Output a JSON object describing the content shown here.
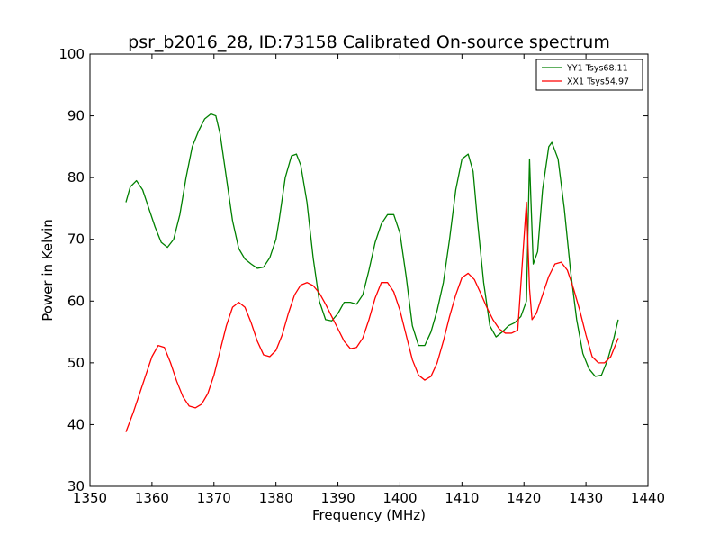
{
  "chart_data": {
    "type": "line",
    "title": "psr_b2016_28, ID:73158 Calibrated On-source spectrum",
    "xlabel": "Frequency (MHz)",
    "ylabel": "Power in Kelvin",
    "xlim": [
      1350,
      1440
    ],
    "ylim": [
      30,
      100
    ],
    "xticks": [
      1350,
      1360,
      1370,
      1380,
      1390,
      1400,
      1410,
      1420,
      1430,
      1440
    ],
    "yticks": [
      30,
      40,
      50,
      60,
      70,
      80,
      90,
      100
    ],
    "grid": false,
    "legend_position": "top-right",
    "series": [
      {
        "name": "YY1 Tsys68.11",
        "color": "#008000",
        "x": [
          1355.8,
          1356.5,
          1357.5,
          1358.5,
          1359.5,
          1360.5,
          1361.5,
          1362.5,
          1363.5,
          1364.5,
          1365.5,
          1366.5,
          1367.5,
          1368.5,
          1369.5,
          1370.3,
          1371,
          1372,
          1373,
          1374,
          1375,
          1376,
          1377,
          1378,
          1379,
          1380,
          1380.5,
          1381.5,
          1382.5,
          1383.3,
          1384,
          1385,
          1386,
          1387,
          1388,
          1389,
          1390,
          1391,
          1392,
          1393,
          1394,
          1395,
          1396,
          1397,
          1398,
          1399,
          1400,
          1401,
          1402,
          1403,
          1404,
          1405,
          1406,
          1407,
          1408,
          1409,
          1410,
          1411,
          1411.8,
          1412.5,
          1413.5,
          1414.5,
          1415.5,
          1416.5,
          1417.5,
          1418.5,
          1419.5,
          1420.4,
          1420.9,
          1421.1,
          1421.5,
          1422.2,
          1423,
          1424,
          1424.5,
          1425.5,
          1426.5,
          1427.5,
          1428.5,
          1429.5,
          1430.5,
          1431.5,
          1432.5,
          1433.5,
          1434.5,
          1435.2
        ],
        "values": [
          76,
          78.5,
          79.5,
          78,
          75,
          72,
          69.5,
          68.7,
          70,
          74,
          80,
          85,
          87.5,
          89.5,
          90.3,
          90,
          87,
          80,
          73,
          68.5,
          66.8,
          66,
          65.3,
          65.5,
          67,
          70,
          73,
          80,
          83.5,
          83.8,
          82,
          76,
          67,
          60,
          57,
          56.8,
          58,
          59.8,
          59.8,
          59.5,
          61,
          65,
          69.5,
          72.5,
          74,
          74,
          71,
          64,
          56,
          52.8,
          52.8,
          55,
          58.5,
          63,
          70,
          78,
          83,
          83.8,
          81,
          73,
          63,
          56,
          54.2,
          55,
          56,
          56.5,
          57.5,
          60,
          83,
          77,
          66,
          68,
          78,
          85,
          85.7,
          83,
          75,
          65,
          57,
          51.5,
          49,
          47.8,
          48,
          50.5,
          54,
          57
        ]
      },
      {
        "name": "XX1 Tsys54.97",
        "color": "#ff0000",
        "x": [
          1355.8,
          1357,
          1358,
          1359,
          1360,
          1361,
          1362,
          1363,
          1364,
          1365,
          1366,
          1367,
          1368,
          1369,
          1370,
          1371,
          1372,
          1373,
          1374,
          1375,
          1376,
          1377,
          1378,
          1379,
          1380,
          1381,
          1382,
          1383,
          1384,
          1385,
          1386,
          1387,
          1388,
          1389,
          1390,
          1391,
          1392,
          1393,
          1394,
          1395,
          1396,
          1397,
          1398,
          1399,
          1400,
          1401,
          1402,
          1403,
          1404,
          1405,
          1406,
          1407,
          1408,
          1409,
          1410,
          1411,
          1412,
          1413,
          1414,
          1415,
          1416,
          1417,
          1418,
          1419,
          1420.4,
          1420.9,
          1421.3,
          1422,
          1423,
          1424,
          1425,
          1426,
          1427,
          1428,
          1429,
          1430,
          1431,
          1432,
          1433,
          1434,
          1435.2
        ],
        "values": [
          38.8,
          42,
          45,
          48,
          51,
          52.8,
          52.5,
          50,
          47,
          44.5,
          43,
          42.7,
          43.3,
          45,
          48,
          52,
          56,
          59,
          59.8,
          59,
          56.5,
          53.5,
          51.3,
          51,
          52,
          54.5,
          58,
          61,
          62.6,
          63,
          62.5,
          61.3,
          59.5,
          57.5,
          55.5,
          53.5,
          52.3,
          52.5,
          54,
          57,
          60.5,
          63,
          63,
          61.5,
          58.5,
          54.5,
          50.5,
          48,
          47.2,
          47.8,
          50,
          53.5,
          57.5,
          61,
          63.8,
          64.5,
          63.5,
          61.3,
          59,
          57,
          55.5,
          54.8,
          54.8,
          55.3,
          76,
          62,
          57,
          58,
          61,
          64,
          66,
          66.3,
          65,
          62,
          58.5,
          54.5,
          51,
          50,
          50,
          51,
          54
        ]
      }
    ]
  }
}
